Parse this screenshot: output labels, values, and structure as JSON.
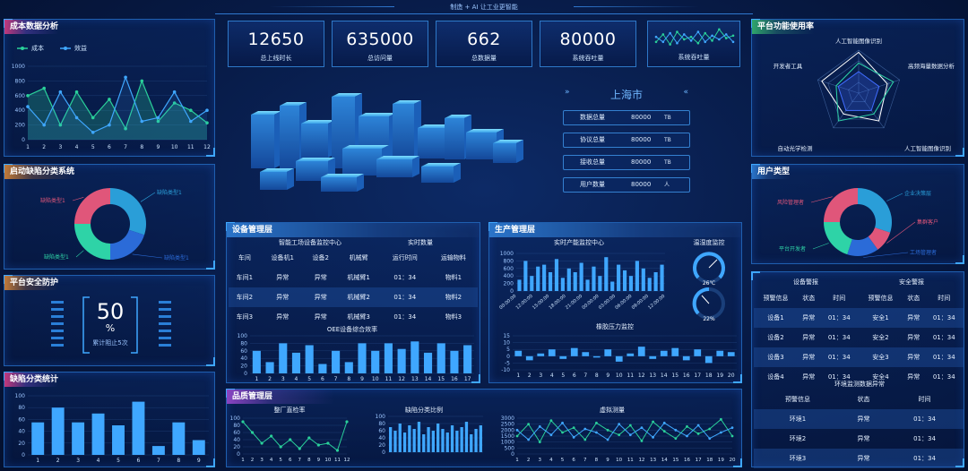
{
  "header": {
    "title": "制造 + AI  让工业更智能"
  },
  "kpis": [
    {
      "value": "12650",
      "label": "总上线时长"
    },
    {
      "value": "635000",
      "label": "总访问量"
    },
    {
      "value": "662",
      "label": "总数据量"
    },
    {
      "value": "80000",
      "label": "系统吞吐量"
    }
  ],
  "kpi_mini": {
    "label": "系统吞吐量"
  },
  "cost_panel": {
    "title": "成本数据分析",
    "legend": [
      "成本",
      "效益"
    ],
    "colors": [
      "#2ad09a",
      "#3fa7ff"
    ]
  },
  "defect_panel": {
    "title": "启动缺陷分类系统",
    "labels": [
      "缺陷类型1",
      "缺陷类型1",
      "缺陷类型1",
      "缺陷类型1"
    ]
  },
  "security_panel": {
    "title": "平台安全防护",
    "value": "50",
    "unit": "%",
    "caption": "累计阻止5次"
  },
  "defect_stats_panel": {
    "title": "缺陷分类统计"
  },
  "city_panel": {
    "city": "上海市",
    "rows": [
      {
        "key": "数据总量",
        "value": "80000",
        "unit": "TB"
      },
      {
        "key": "协议总量",
        "value": "80000",
        "unit": "TB"
      },
      {
        "key": "接收总量",
        "value": "80000",
        "unit": "TB"
      },
      {
        "key": "用户数量",
        "value": "80000",
        "unit": "人"
      }
    ]
  },
  "radar_panel": {
    "title": "平台功能使用率",
    "axes": [
      "人工智能图像识别",
      "高频海量数据分析",
      "人工智能图像识别",
      "自动光学检测",
      "开发者工具"
    ]
  },
  "user_panel": {
    "title": "用户类型",
    "labels": [
      "企业决策层",
      "集群客户",
      "工场管理者",
      "平台开发者",
      "风险管理者"
    ]
  },
  "device_panel": {
    "title": "设备管理层",
    "sub1": "智能工场设备监控中心",
    "sub2": "实时数量",
    "columns": [
      "车间",
      "设备机1",
      "设备2",
      "机械臂",
      "运行时间",
      "运输物料"
    ],
    "rows": [
      [
        "车间1",
        "异常",
        "异常",
        "机械臂1",
        "01：34",
        "物料1"
      ],
      [
        "车间2",
        "异常",
        "异常",
        "机械臂2",
        "01：34",
        "物料2"
      ],
      [
        "车间3",
        "异常",
        "异常",
        "机械臂3",
        "01：34",
        "物料3"
      ]
    ],
    "oee_title": "OEE设备综合效率"
  },
  "production_panel": {
    "title": "生产管理层",
    "sub1": "实时产能监控中心",
    "sub2": "温湿度监控",
    "gauges": [
      "26℃",
      "22%"
    ],
    "sub3": "橡胶压力监控"
  },
  "quality_panel": {
    "title": "品质管理层",
    "sub1": "整厂直检率",
    "sub2": "缺陷分类比例",
    "sub3": "虚拟测量"
  },
  "alarm_panel": {
    "col_titles": [
      "设备警报",
      "安全警报"
    ],
    "columns": [
      "预警信息",
      "状态",
      "时间",
      "预警信息",
      "状态",
      "时间"
    ],
    "rows": [
      [
        "设备1",
        "异常",
        "01：34",
        "安全1",
        "异常",
        "01：34"
      ],
      [
        "设备2",
        "异常",
        "01：34",
        "安全2",
        "异常",
        "01：34"
      ],
      [
        "设备3",
        "异常",
        "01：34",
        "安全3",
        "异常",
        "01：34"
      ],
      [
        "设备4",
        "异常",
        "01：34",
        "安全4",
        "异常",
        "01：34"
      ]
    ],
    "env_title": "环境监测数据异常",
    "env_columns": [
      "预警信息",
      "状态",
      "时间"
    ],
    "env_rows": [
      [
        "环境1",
        "异常",
        "01：34"
      ],
      [
        "环境2",
        "异常",
        "01：34"
      ],
      [
        "环境3",
        "异常",
        "01：34"
      ]
    ]
  },
  "chart_data": [
    {
      "type": "line",
      "id": "cost",
      "categories": [
        "1",
        "2",
        "3",
        "4",
        "5",
        "6",
        "7",
        "8",
        "9",
        "10",
        "11",
        "12"
      ],
      "series": [
        {
          "name": "成本",
          "values": [
            600,
            700,
            200,
            650,
            300,
            550,
            150,
            800,
            250,
            500,
            400,
            230
          ]
        },
        {
          "name": "效益",
          "values": [
            450,
            200,
            650,
            300,
            100,
            200,
            850,
            250,
            300,
            650,
            250,
            400
          ]
        }
      ],
      "ylim": [
        0,
        1000
      ],
      "yticks": [
        0,
        200,
        400,
        600,
        800,
        1000
      ]
    },
    {
      "type": "pie",
      "id": "defect_donut",
      "values": [
        30,
        20,
        25,
        25
      ],
      "colors": [
        "#2a9ed8",
        "#2b6bd8",
        "#2ed3a7",
        "#e0567a"
      ]
    },
    {
      "type": "bar",
      "id": "defect_stats",
      "categories": [
        "1",
        "2",
        "3",
        "4",
        "5",
        "6",
        "7",
        "8",
        "9"
      ],
      "values": [
        55,
        80,
        55,
        70,
        50,
        90,
        15,
        55,
        25
      ],
      "ylim": [
        0,
        100
      ],
      "yticks": [
        0,
        20,
        40,
        60,
        80,
        100
      ]
    },
    {
      "type": "bar",
      "id": "oee",
      "categories": [
        "1",
        "2",
        "3",
        "4",
        "5",
        "6",
        "7",
        "8",
        "9",
        "10",
        "11",
        "12",
        "13",
        "14",
        "15",
        "16",
        "17"
      ],
      "values": [
        60,
        30,
        80,
        55,
        75,
        25,
        60,
        30,
        80,
        60,
        80,
        65,
        85,
        55,
        80,
        60,
        75
      ],
      "ylim": [
        0,
        100
      ],
      "yticks": [
        0,
        20,
        40,
        60,
        80,
        100
      ]
    },
    {
      "type": "bar",
      "id": "capacity",
      "categories": [
        "00:00:00",
        "02:00:00",
        "04:00:00",
        "06:00:00",
        "08:00:00",
        "10:00:00",
        "12:00:00",
        "14:00:00",
        "16:00:00",
        "18:00:00",
        "20:00:00",
        "22:00:00",
        "00:00:00",
        "02:00:00",
        "04:00:00",
        "06:00:00",
        "08:00:00",
        "10:00:00",
        "12:00:00",
        "14:00:00",
        "16:00:00",
        "18:00:00",
        "20:00:00",
        "22:00:00"
      ],
      "ticklabels": [
        "00:00:00",
        "12:00:00",
        "15:00:00",
        "18:00:00",
        "21:00:00",
        "00:00:00",
        "03:00:00",
        "06:00:00",
        "09:00:00",
        "12:00:00"
      ],
      "values": [
        300,
        800,
        400,
        650,
        700,
        500,
        850,
        350,
        600,
        500,
        750,
        300,
        650,
        400,
        900,
        250,
        700,
        550,
        400,
        800,
        600,
        350,
        500,
        700
      ],
      "ylim": [
        0,
        1000
      ],
      "yticks": [
        0,
        200,
        400,
        600,
        800,
        1000
      ]
    },
    {
      "type": "bar",
      "id": "pressure",
      "categories": [
        "1",
        "2",
        "3",
        "4",
        "5",
        "6",
        "7",
        "8",
        "9",
        "10",
        "11",
        "12",
        "13",
        "14",
        "15",
        "16",
        "17",
        "18",
        "19",
        "20"
      ],
      "values": [
        4,
        -3,
        2,
        5,
        -2,
        6,
        3,
        -1,
        5,
        -4,
        2,
        7,
        -2,
        4,
        6,
        -3,
        5,
        -5,
        4,
        3
      ],
      "ylim": [
        -10,
        15
      ],
      "yticks": [
        -10,
        -5,
        0,
        5,
        10,
        15
      ]
    },
    {
      "type": "line",
      "id": "direct_rate",
      "categories": [
        "1",
        "2",
        "3",
        "4",
        "5",
        "6",
        "7",
        "8",
        "9",
        "10",
        "11",
        "12"
      ],
      "values": [
        90,
        60,
        30,
        50,
        20,
        40,
        15,
        45,
        25,
        30,
        10,
        90
      ],
      "ylim": [
        0,
        100
      ],
      "yticks": [
        0,
        20,
        40,
        60,
        80,
        100
      ]
    },
    {
      "type": "bar",
      "id": "defect_ratio",
      "categories": [
        "1",
        "2",
        "3",
        "4",
        "5",
        "6",
        "7",
        "8",
        "9",
        "10",
        "11",
        "12",
        "13",
        "14",
        "15",
        "16",
        "17",
        "18",
        "19",
        "20"
      ],
      "values": [
        70,
        60,
        80,
        55,
        75,
        65,
        85,
        50,
        70,
        60,
        80,
        65,
        55,
        75,
        60,
        70,
        85,
        50,
        65,
        75
      ],
      "ylim": [
        0,
        100
      ],
      "yticks": [
        0,
        20,
        40,
        60,
        80,
        100
      ]
    },
    {
      "type": "line",
      "id": "virtual_measure",
      "categories": [
        "1",
        "2",
        "3",
        "4",
        "5",
        "6",
        "7",
        "8",
        "9",
        "10",
        "11",
        "12",
        "13",
        "14",
        "15",
        "16",
        "17",
        "18",
        "19",
        "20"
      ],
      "series": [
        {
          "values": [
            1500,
            2500,
            1000,
            2800,
            1800,
            2200,
            1200,
            2600,
            2000,
            1600,
            2400,
            1100,
            2700,
            1900,
            1300,
            2300,
            1700,
            2100,
            2900,
            1500
          ]
        },
        {
          "values": [
            2000,
            1200,
            2300,
            1600,
            2600,
            1400,
            2100,
            1800,
            1200,
            2500,
            1600,
            2200,
            1400,
            2600,
            2000,
            1500,
            2400,
            1300,
            1800,
            2200
          ]
        }
      ],
      "ylim": [
        0,
        3000
      ],
      "yticks": [
        0,
        500,
        1000,
        1500,
        2000,
        2500,
        3000
      ]
    },
    {
      "type": "line",
      "id": "kpi_mini",
      "categories": [
        "1",
        "2",
        "3",
        "4",
        "5",
        "6",
        "7",
        "8",
        "9",
        "10",
        "11",
        "12"
      ],
      "series": [
        {
          "values": [
            40,
            70,
            30,
            80,
            50,
            60,
            35,
            75,
            45,
            90,
            55,
            65
          ]
        },
        {
          "values": [
            60,
            40,
            75,
            35,
            70,
            45,
            80,
            40,
            65,
            50,
            70,
            40
          ]
        }
      ]
    },
    {
      "type": "radar",
      "id": "radar",
      "series": [
        {
          "values": [
            0.95,
            0.7,
            0.8,
            0.6,
            0.9
          ]
        },
        {
          "values": [
            0.7,
            0.85,
            0.6,
            0.8,
            0.55
          ]
        },
        {
          "values": [
            0.5,
            0.5,
            0.5,
            0.5,
            0.5
          ]
        }
      ]
    },
    {
      "type": "pie",
      "id": "user_donut",
      "values": [
        30,
        10,
        15,
        20,
        25
      ],
      "colors": [
        "#2a9ed8",
        "#e0567a",
        "#2b6bd8",
        "#2ed3a7",
        "#e0567a"
      ]
    }
  ]
}
